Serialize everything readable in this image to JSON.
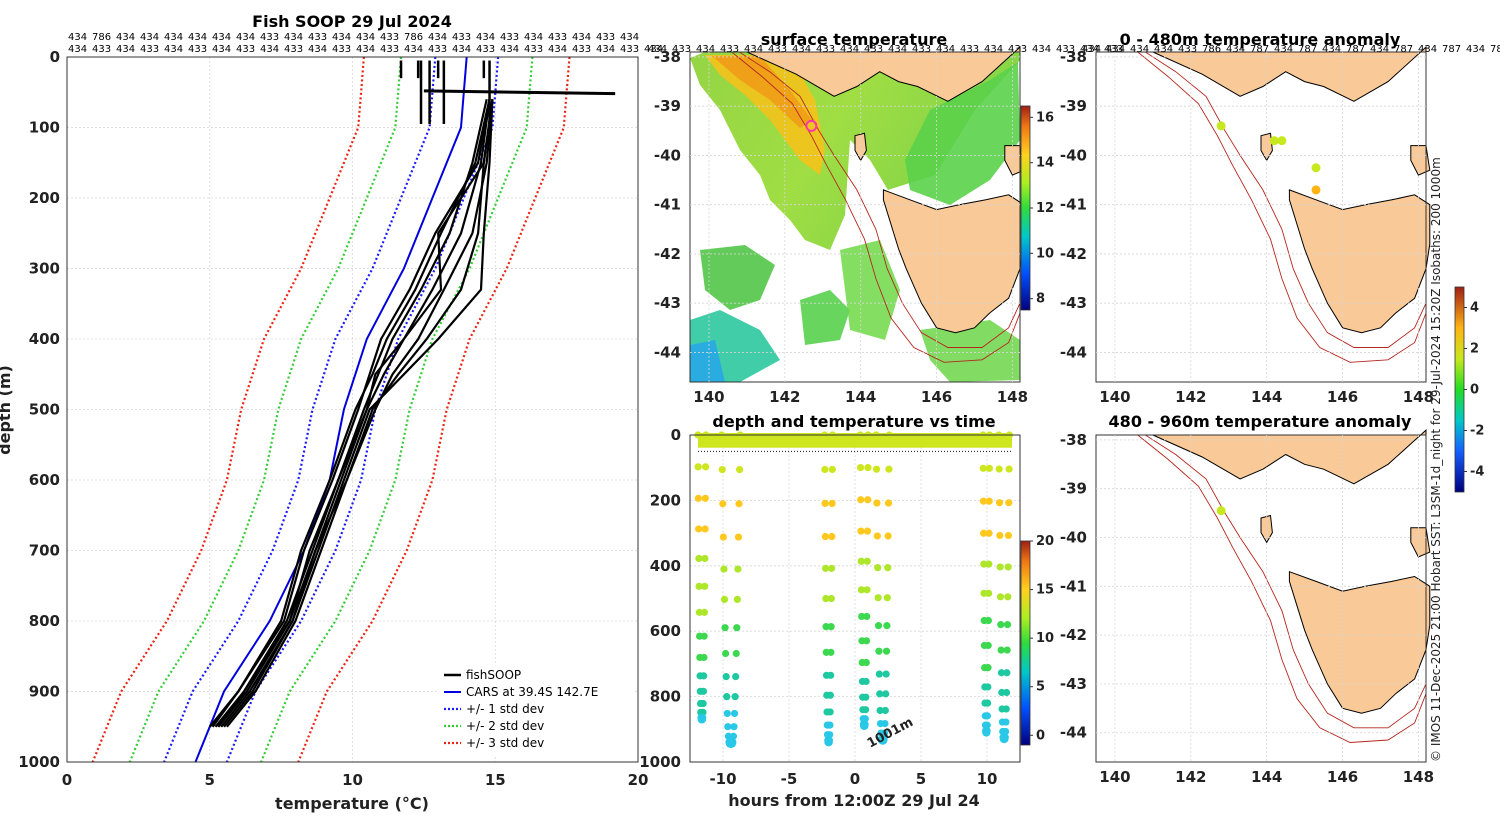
{
  "colors": {
    "fishsoop": "#000000",
    "cars": "#0000dd",
    "std1": "#1a1aff",
    "std2": "#33cc33",
    "std3": "#ee2211",
    "land": "#f9c998",
    "isobath": "#b5261e",
    "marker": "#ff33aa"
  },
  "chart_data": [
    {
      "id": "profile",
      "type": "line",
      "title": "Fish SOOP 29 Jul 2024",
      "xlabel": "temperature (°C)",
      "ylabel": "depth (m)",
      "xlim": [
        0,
        20
      ],
      "ylim": [
        1000,
        0
      ],
      "xticks": [
        0,
        5,
        10,
        15,
        20
      ],
      "yticks": [
        0,
        100,
        200,
        300,
        400,
        500,
        600,
        700,
        800,
        900,
        1000
      ],
      "cast_ids_row1": [
        "434",
        "786",
        "434",
        "434",
        "434",
        "434",
        "434",
        "434",
        "433",
        "434",
        "433",
        "434",
        "434",
        "433",
        "786",
        "434",
        "433",
        "434",
        "433",
        "434",
        "433",
        "434",
        "433",
        "434"
      ],
      "cast_ids_row2": [
        "434",
        "433",
        "434",
        "433",
        "434",
        "433",
        "434",
        "433",
        "434",
        "433",
        "434",
        "433",
        "434",
        "433",
        "434",
        "433",
        "434",
        "433",
        "434",
        "433",
        "434",
        "433",
        "434",
        "433",
        "434"
      ],
      "legend": [
        "fishSOOP",
        "CARS at 39.4S 142.7E",
        "+/- 1 std dev",
        "+/- 2 std dev",
        "+/- 3 std dev"
      ],
      "cars_profile": {
        "depth": [
          0,
          50,
          100,
          200,
          300,
          400,
          500,
          600,
          700,
          800,
          900,
          1000
        ],
        "temp": [
          14.0,
          13.9,
          13.8,
          12.8,
          11.8,
          10.5,
          9.7,
          9.2,
          8.3,
          7.1,
          5.5,
          4.5
        ]
      },
      "std_offsets": [
        1.1,
        2.3,
        3.6
      ],
      "fishsoop_profiles": [
        {
          "depth": [
            60,
            150,
            250,
            330,
            400,
            450,
            500,
            600,
            700,
            800,
            900,
            950
          ],
          "temp": [
            14.9,
            14.6,
            13.0,
            13.1,
            11.8,
            10.8,
            10.5,
            9.5,
            8.5,
            7.8,
            6.2,
            5.3
          ]
        },
        {
          "depth": [
            60,
            150,
            250,
            330,
            400,
            450,
            500,
            600,
            700,
            800,
            900,
            950
          ],
          "temp": [
            14.8,
            14.4,
            12.9,
            12.0,
            11.0,
            10.6,
            10.2,
            9.3,
            8.3,
            7.6,
            6.0,
            5.1
          ]
        },
        {
          "depth": [
            60,
            150,
            250,
            330,
            400,
            450,
            500,
            600,
            700,
            800,
            900,
            950
          ],
          "temp": [
            14.9,
            14.8,
            14.6,
            14.5,
            13.0,
            11.8,
            10.6,
            9.7,
            8.8,
            7.9,
            6.4,
            5.4
          ]
        },
        {
          "depth": [
            60,
            150,
            250,
            330,
            400,
            450,
            500,
            600,
            700,
            800,
            900,
            950
          ],
          "temp": [
            14.7,
            14.2,
            13.4,
            12.4,
            11.4,
            10.9,
            10.4,
            9.5,
            8.6,
            7.7,
            6.2,
            5.2
          ]
        },
        {
          "depth": [
            60,
            150,
            250,
            330,
            400,
            450,
            500,
            600,
            700,
            800,
            900,
            950
          ],
          "temp": [
            14.9,
            14.7,
            14.2,
            13.2,
            12.3,
            11.4,
            10.8,
            9.8,
            8.9,
            8.0,
            6.6,
            5.6
          ]
        },
        {
          "depth": [
            60,
            150,
            250,
            330,
            400,
            450,
            500,
            600,
            700,
            800,
            900,
            950
          ],
          "temp": [
            14.8,
            14.5,
            13.8,
            12.8,
            11.8,
            11.1,
            10.5,
            9.6,
            8.7,
            7.8,
            6.3,
            5.3
          ]
        },
        {
          "depth": [
            60,
            150,
            250,
            330,
            400,
            450,
            500,
            600,
            700,
            800,
            900,
            950
          ],
          "temp": [
            14.9,
            14.6,
            14.4,
            13.8,
            12.6,
            11.6,
            10.7,
            9.8,
            8.7,
            7.9,
            6.5,
            5.5
          ]
        },
        {
          "depth": [
            60,
            150,
            250,
            330,
            400,
            450,
            500,
            600,
            700,
            800,
            900,
            950
          ],
          "temp": [
            14.8,
            14.3,
            13.1,
            12.2,
            11.2,
            10.7,
            10.1,
            9.2,
            8.2,
            7.5,
            6.0,
            5.0
          ]
        }
      ]
    },
    {
      "id": "sst_map",
      "type": "heatmap",
      "title": "surface temperature",
      "xlim": [
        139.5,
        148.2
      ],
      "ylim": [
        -44.6,
        -37.9
      ],
      "xticks": [
        140,
        142,
        144,
        146,
        148
      ],
      "yticks": [
        -38,
        -39,
        -40,
        -41,
        -42,
        -43,
        -44
      ],
      "colorbar_ticks": [
        8,
        10,
        12,
        14,
        16
      ],
      "colorbar_range": [
        7.5,
        16.5
      ],
      "marker": {
        "lon": 142.7,
        "lat": -39.4
      },
      "cast_ids": [
        "434",
        "433",
        "434",
        "433",
        "434",
        "433",
        "434",
        "433",
        "434",
        "433",
        "434",
        "433",
        "434",
        "433",
        "434",
        "433",
        "434",
        "433",
        "434",
        "433"
      ]
    },
    {
      "id": "depth_time",
      "type": "scatter",
      "title": "depth and temperature vs time",
      "xlabel": "hours from 12:00Z 29 Jul 24",
      "xlim": [
        -12.5,
        12.5
      ],
      "ylim": [
        1000,
        0
      ],
      "xticks": [
        -10,
        -5,
        0,
        5,
        10
      ],
      "yticks": [
        0,
        200,
        400,
        600,
        800,
        1000
      ],
      "colorbar_ticks": [
        0,
        5,
        10,
        15,
        20
      ],
      "colorbar_range": [
        -1,
        20
      ],
      "annotation": "1001m",
      "dives": [
        {
          "start": -11.9,
          "end": -11.3,
          "max_depth": 870
        },
        {
          "start": -10.1,
          "end": -8.7,
          "max_depth": 945
        },
        {
          "start": -2.3,
          "end": -1.7,
          "max_depth": 940
        },
        {
          "start": 0.4,
          "end": 1.0,
          "max_depth": 890
        },
        {
          "start": 1.6,
          "end": 2.6,
          "max_depth": 935
        },
        {
          "start": 9.7,
          "end": 10.2,
          "max_depth": 910
        },
        {
          "start": 10.9,
          "end": 11.7,
          "max_depth": 930
        }
      ]
    },
    {
      "id": "anomaly_upper",
      "type": "scatter",
      "title": "0 - 480m temperature anomaly",
      "xlim": [
        139.5,
        148.2
      ],
      "ylim": [
        -44.6,
        -37.9
      ],
      "xticks": [
        140,
        142,
        144,
        146,
        148
      ],
      "yticks": [
        -38,
        -39,
        -40,
        -41,
        -42,
        -43,
        -44
      ],
      "cast_ids": [
        "434",
        "434",
        "434",
        "434",
        "433",
        "786",
        "434",
        "787",
        "434",
        "787",
        "434",
        "787",
        "434",
        "787",
        "434",
        "787",
        "434",
        "787",
        "434",
        "787",
        "434",
        "787",
        "434"
      ],
      "points": [
        {
          "lon": 142.8,
          "lat": -39.4,
          "anomaly": 0.5
        },
        {
          "lon": 144.2,
          "lat": -39.7,
          "anomaly": 0.8
        },
        {
          "lon": 144.4,
          "lat": -39.7,
          "anomaly": 0.8
        },
        {
          "lon": 145.3,
          "lat": -40.25,
          "anomaly": 1.0
        },
        {
          "lon": 145.3,
          "lat": -40.7,
          "anomaly": 1.6
        }
      ]
    },
    {
      "id": "anomaly_lower",
      "type": "scatter",
      "title": "480 - 960m temperature anomaly",
      "xlim": [
        139.5,
        148.2
      ],
      "ylim": [
        -44.6,
        -37.9
      ],
      "xticks": [
        140,
        142,
        144,
        146,
        148
      ],
      "yticks": [
        -38,
        -39,
        -40,
        -41,
        -42,
        -43,
        -44
      ],
      "points": [
        {
          "lon": 142.8,
          "lat": -39.45,
          "anomaly": 0.3
        }
      ]
    },
    {
      "id": "anomaly_colorbar",
      "type": "heatmap",
      "colorbar_ticks": [
        -4,
        -2,
        0,
        2,
        4
      ],
      "colorbar_range": [
        -5,
        5
      ]
    }
  ],
  "credit": "© IMOS 11-Dec-2025 21:00 Hobart SST: L3SM-1d_night for 29-Jul-2024 15:20Z Isobaths: 200  1000m"
}
